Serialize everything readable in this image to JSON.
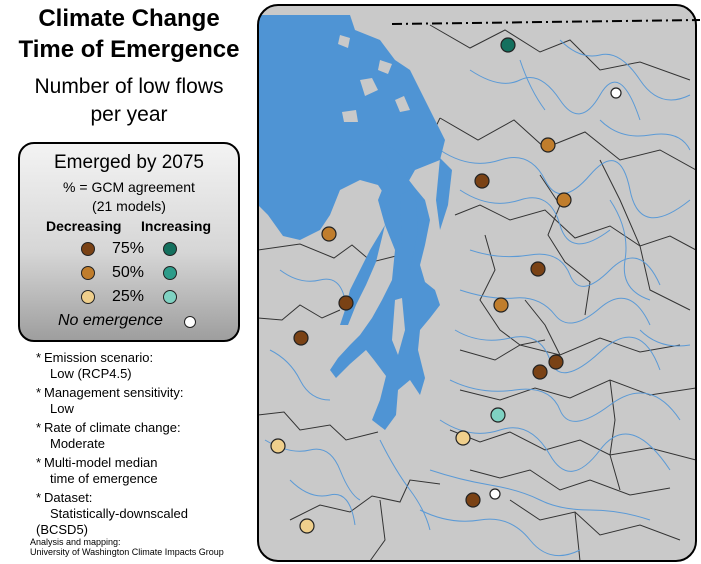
{
  "title": {
    "line1": "Climate Change",
    "line2": "Time of Emergence"
  },
  "subtitle": {
    "line1": "Number of low flows",
    "line2": "per year"
  },
  "legend": {
    "heading": "Emerged by 2075",
    "agreement_line1": "% = GCM agreement",
    "agreement_line2": "(21 models)",
    "col_decreasing": "Decreasing",
    "col_increasing": "Increasing",
    "levels": [
      {
        "label": "75%",
        "decreasing_color": "#7a4215",
        "increasing_color": "#14705e"
      },
      {
        "label": "50%",
        "decreasing_color": "#c07d2c",
        "increasing_color": "#2e9c8a"
      },
      {
        "label": "25%",
        "decreasing_color": "#efcf8c",
        "increasing_color": "#7fd2c2"
      }
    ],
    "no_emergence": "No emergence",
    "no_emergence_color": "#ffffff"
  },
  "notes": [
    {
      "line1": "Emission scenario:",
      "line2": "Low (RCP4.5)"
    },
    {
      "line1": "Management sensitivity:",
      "line2": "Low"
    },
    {
      "line1": "Rate of climate change:",
      "line2": "Moderate"
    },
    {
      "line1": "Multi-model median",
      "line2": "time of emergence"
    },
    {
      "line1": "Dataset:",
      "line2": "Statistically-downscaled",
      "line3": "(BCSD5)"
    }
  ],
  "credit": {
    "line1": "Analysis and mapping:",
    "line2": "University of Washington Climate Impacts Group"
  },
  "map": {
    "land_color": "#c9c9c9",
    "water_color": "#4f94d4",
    "river_color": "#5b9ad6",
    "boundary_color": "#333333"
  }
}
